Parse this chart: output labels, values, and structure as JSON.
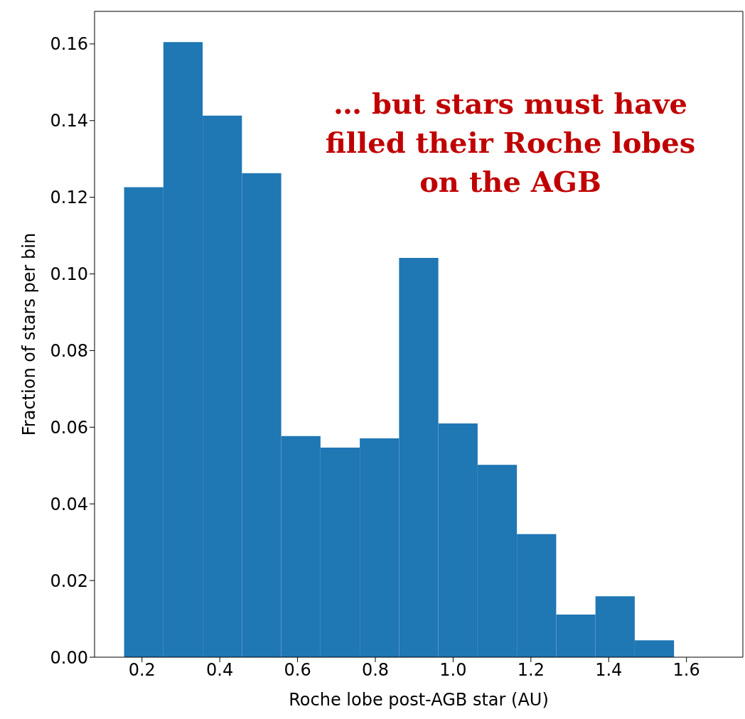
{
  "chart_data": {
    "type": "histogram",
    "xlabel": "Roche lobe post-AGB star (AU)",
    "ylabel": "Fraction of stars per bin",
    "annotations": [
      "… but stars must have filled their Roche lobes on the AGB"
    ],
    "bins": [
      0.154,
      0.255,
      0.356,
      0.457,
      0.558,
      0.659,
      0.76,
      0.861,
      0.962,
      1.063,
      1.164,
      1.265,
      1.366,
      1.467,
      1.568,
      1.669
    ],
    "values": [
      0.1226,
      0.1605,
      0.1413,
      0.1263,
      0.0577,
      0.0547,
      0.0571,
      0.1042,
      0.061,
      0.0502,
      0.0321,
      0.0111,
      0.0159,
      0.0044,
      0
    ],
    "color": "#1f77b4",
    "xlim": [
      0.078,
      1.745
    ],
    "ylim": [
      0,
      0.1685
    ],
    "xticks": [
      {
        "value": 0.2,
        "label": "0.2"
      },
      {
        "value": 0.4,
        "label": "0.4"
      },
      {
        "value": 0.6,
        "label": "0.6"
      },
      {
        "value": 0.8,
        "label": "0.8"
      },
      {
        "value": 1.0,
        "label": "1.0"
      },
      {
        "value": 1.2,
        "label": "1.2"
      },
      {
        "value": 1.4,
        "label": "1.4"
      },
      {
        "value": 1.6,
        "label": "1.6"
      }
    ],
    "yticks": [
      {
        "value": 0,
        "label": "0.00"
      },
      {
        "value": 0.02,
        "label": "0.02"
      },
      {
        "value": 0.04,
        "label": "0.04"
      },
      {
        "value": 0.06,
        "label": "0.06"
      },
      {
        "value": 0.08,
        "label": "0.08"
      },
      {
        "value": 0.1,
        "label": "0.10"
      },
      {
        "value": 0.12,
        "label": "0.12"
      },
      {
        "value": 0.14,
        "label": "0.14"
      },
      {
        "value": 0.16,
        "label": "0.16"
      }
    ]
  }
}
